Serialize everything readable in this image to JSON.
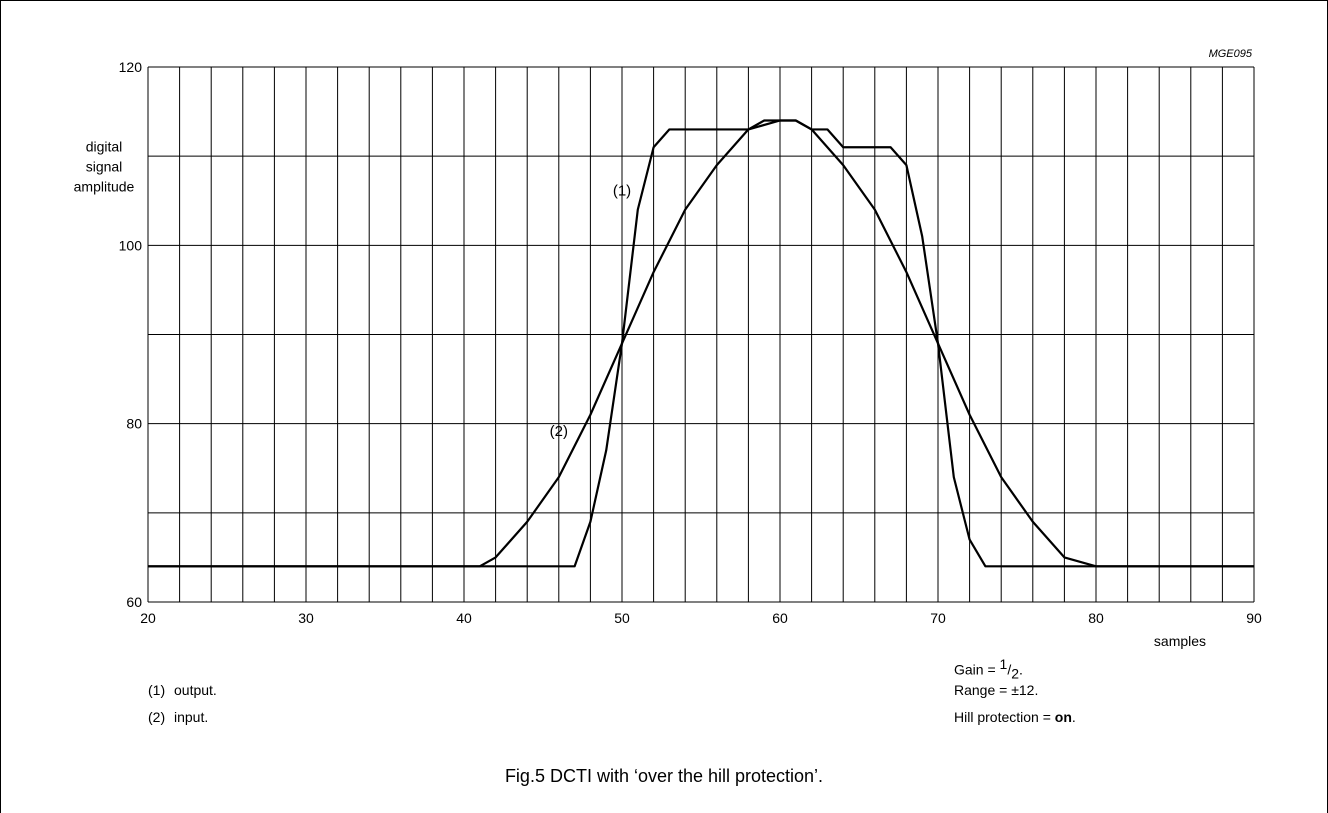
{
  "chart_data": {
    "type": "line",
    "code": "MGE095",
    "ylabel_lines": [
      "digital",
      "signal",
      "amplitude"
    ],
    "xlabel": "samples",
    "xlim": [
      20,
      90
    ],
    "ylim": [
      60,
      120
    ],
    "x_ticks": [
      20,
      30,
      40,
      50,
      60,
      70,
      80,
      90
    ],
    "y_ticks": [
      60,
      80,
      100,
      120
    ],
    "x_minor_step": 2,
    "y_minor_step": 10,
    "grid": true,
    "series": [
      {
        "name": "(1)",
        "x": [
          20,
          47,
          48,
          49,
          50,
          51,
          52,
          53,
          58,
          59,
          60,
          61,
          62,
          63,
          64,
          67,
          68,
          69,
          70,
          71,
          72,
          73,
          90
        ],
        "y": [
          64,
          64,
          69,
          77,
          89,
          104,
          111,
          113,
          113,
          114,
          114,
          114,
          113,
          113,
          111,
          111,
          109,
          101,
          89,
          74,
          67,
          64,
          64
        ]
      },
      {
        "name": "(2)",
        "x": [
          20,
          41,
          42,
          44,
          46,
          48,
          50,
          52,
          54,
          56,
          58,
          60,
          61,
          62,
          64,
          66,
          68,
          70,
          72,
          74,
          76,
          78,
          80,
          90
        ],
        "y": [
          64,
          64,
          65,
          69,
          74,
          81,
          89,
          97,
          104,
          109,
          113,
          114,
          114,
          113,
          109,
          104,
          97,
          89,
          81,
          74,
          69,
          65,
          64,
          64
        ]
      }
    ],
    "series_labels": [
      {
        "text": "(1)",
        "x": 50.0,
        "y": 105.6
      },
      {
        "text": "(2)",
        "x": 46.0,
        "y": 78.6
      }
    ]
  },
  "legend": [
    {
      "num": "(1)",
      "text": "output."
    },
    {
      "num": "(2)",
      "text": "input."
    }
  ],
  "params": {
    "gain_prefix": "Gain = ",
    "gain_num": "1",
    "gain_den": "2",
    "gain_suffix": ".",
    "range": "Range = ±12.",
    "hill_prefix": "Hill protection = ",
    "hill_value": "on",
    "hill_suffix": "."
  },
  "caption": "Fig.5  DCTI with ‘over the hill protection’."
}
